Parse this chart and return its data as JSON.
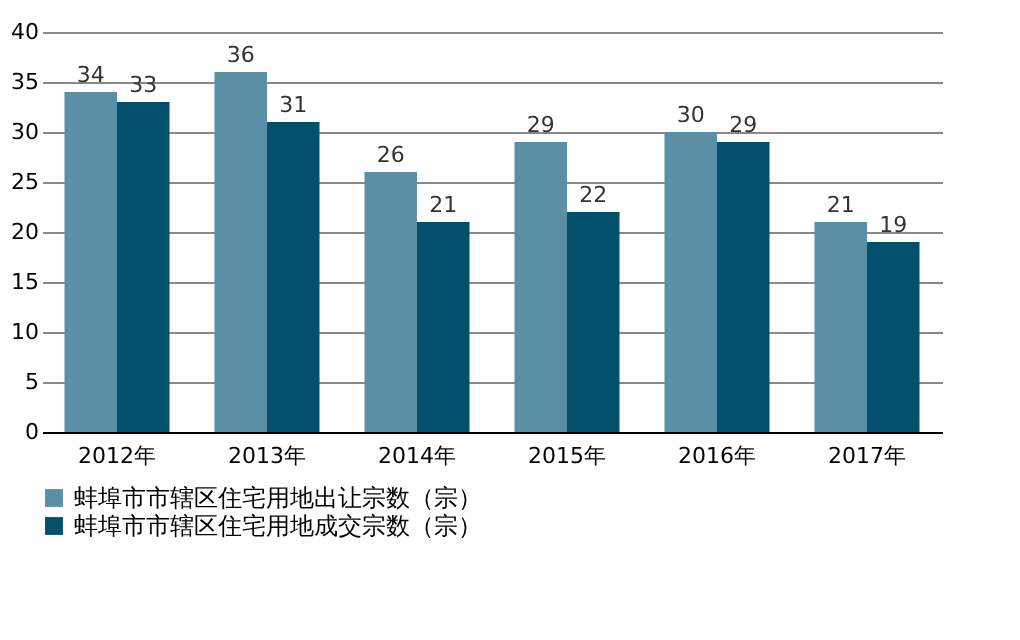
{
  "chart_data": {
    "type": "bar",
    "categories": [
      "2012年",
      "2013年",
      "2014年",
      "2015年",
      "2016年",
      "2017年"
    ],
    "series": [
      {
        "name": "蚌埠市市辖区住宅用地出让宗数（宗）",
        "color": "#5b8fa6",
        "values": [
          34,
          36,
          26,
          29,
          30,
          21
        ]
      },
      {
        "name": "蚌埠市市辖区住宅用地成交宗数（宗）",
        "color": "#02506b",
        "values": [
          33,
          31,
          21,
          22,
          29,
          19
        ]
      }
    ],
    "ylim": [
      0,
      40
    ],
    "yticks": [
      0,
      5,
      10,
      15,
      20,
      25,
      30,
      35,
      40
    ],
    "grid": "y",
    "legend": "bottom",
    "data_labels": true
  }
}
